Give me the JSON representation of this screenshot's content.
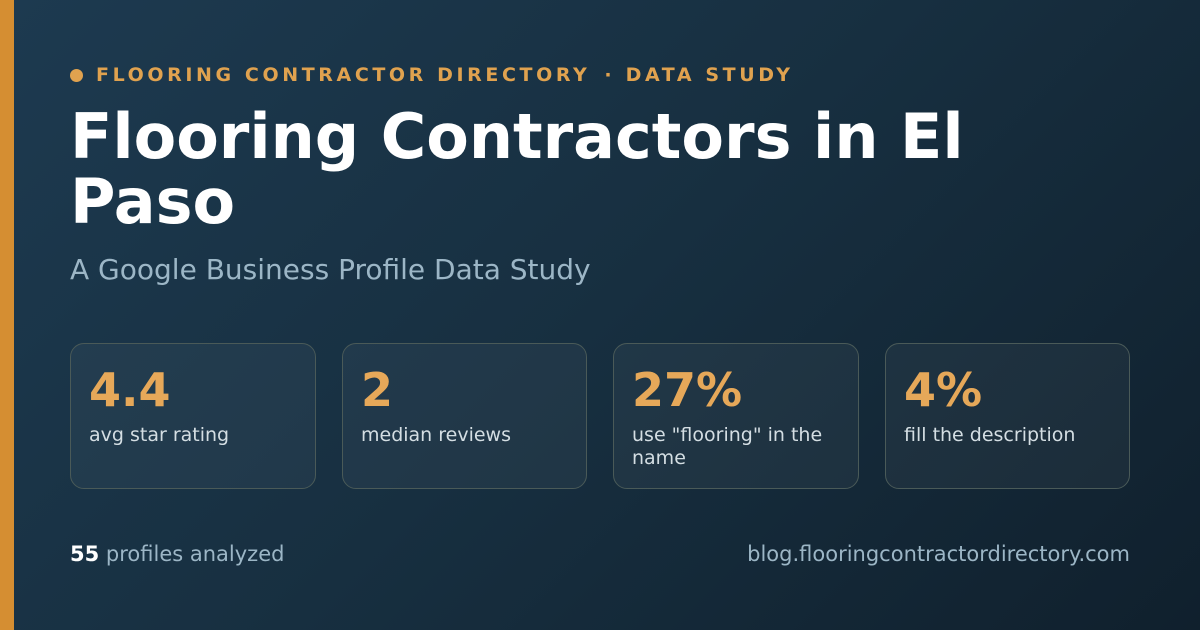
{
  "header": {
    "eyebrow_site": "FLOORING CONTRACTOR DIRECTORY",
    "eyebrow_separator": "·",
    "eyebrow_type": "DATA STUDY",
    "title": "Flooring Contractors in El Paso",
    "subtitle": "A Google Business Profile Data Study"
  },
  "stats": [
    {
      "value": "4.4",
      "label": "avg star rating"
    },
    {
      "value": "2",
      "label": "median reviews"
    },
    {
      "value": "27%",
      "label": "use \"flooring\" in the name"
    },
    {
      "value": "4%",
      "label": "fill the description"
    }
  ],
  "footer": {
    "profile_count": "55",
    "profile_count_label": "profiles analyzed",
    "site_url": "blog.flooringcontractordirectory.com"
  },
  "colors": {
    "accent": "#d58e32",
    "highlight": "#e6a859",
    "background_start": "#1d3a50",
    "background_end": "#10202d",
    "title_text": "#ffffff",
    "muted_text": "#9cb6c6"
  }
}
